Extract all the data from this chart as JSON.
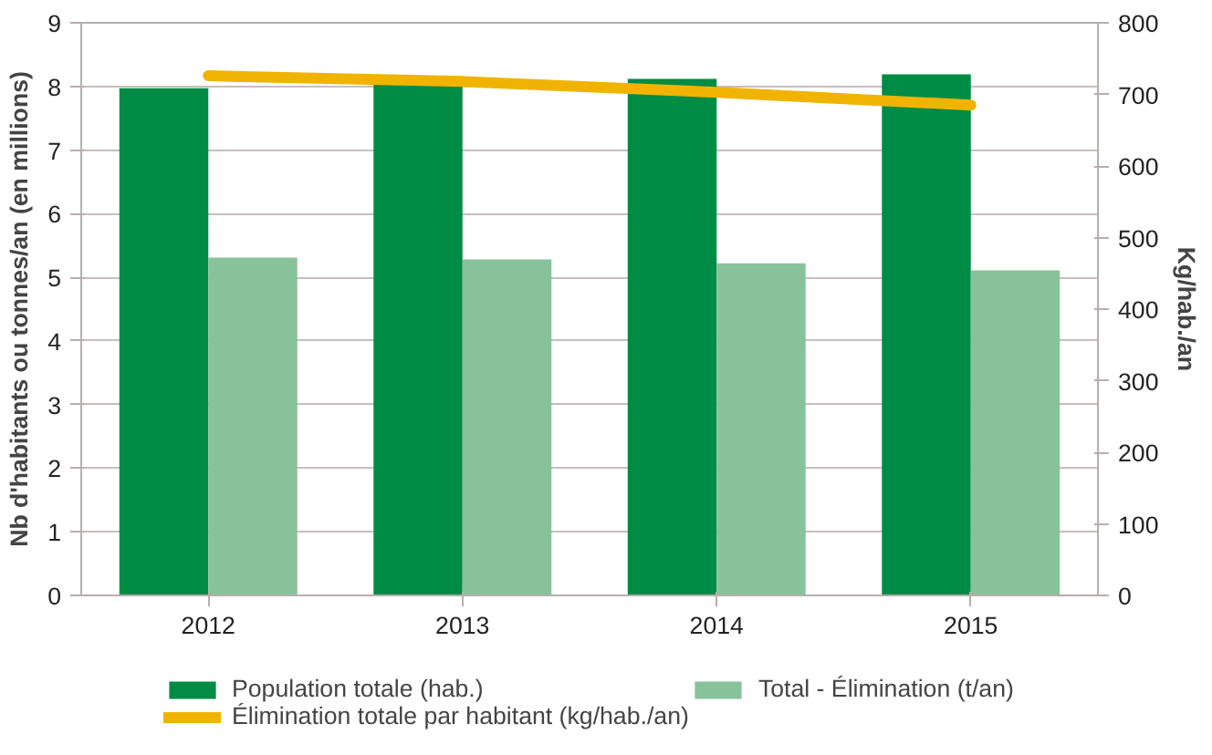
{
  "chart_data": {
    "type": "bar",
    "categories": [
      "2012",
      "2013",
      "2014",
      "2015"
    ],
    "ylabel": "Nb d'habitants ou tonnes/an (en millions)",
    "y2label": "Kg/hab./an",
    "ylim": [
      0,
      9
    ],
    "yticks": [
      0,
      1,
      2,
      3,
      4,
      5,
      6,
      7,
      8,
      9
    ],
    "y2lim": [
      0,
      800
    ],
    "y2ticks": [
      0,
      100,
      200,
      300,
      400,
      500,
      600,
      700,
      800
    ],
    "grid": "y",
    "legend": "bottom",
    "series": [
      {
        "name": "Population totale (hab.)",
        "color": "#008c44",
        "values": [
          7.97,
          8.04,
          8.12,
          8.19
        ]
      },
      {
        "name": "Total - Élimination (t/an)",
        "color": "#88c29a",
        "values": [
          5.31,
          5.28,
          5.22,
          5.11
        ]
      },
      {
        "name": "Élimination totale par habitant (kg/hab./an)",
        "type": "line",
        "axis": "y2",
        "color": "#f0b400",
        "values": [
          726,
          718,
          703,
          685
        ]
      }
    ]
  }
}
